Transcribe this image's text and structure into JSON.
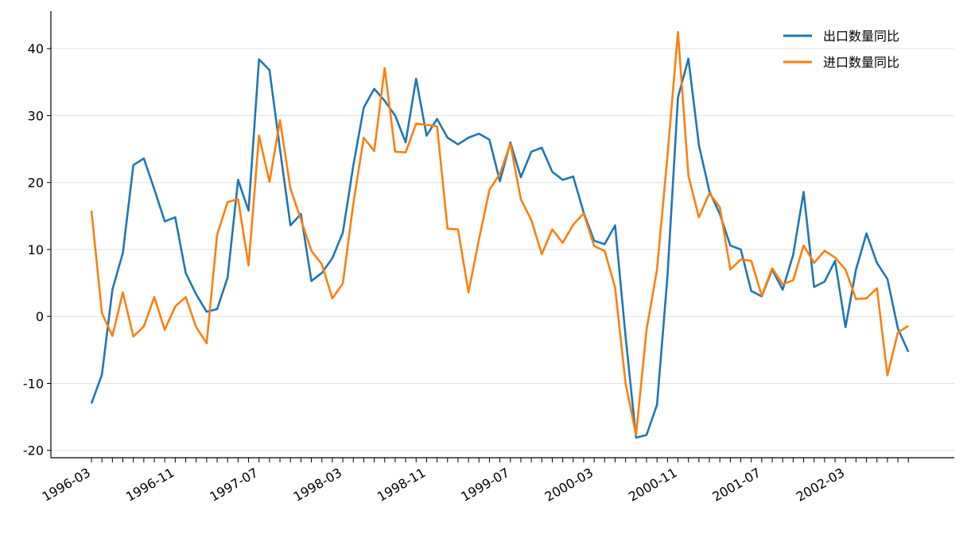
{
  "chart_data": {
    "type": "line",
    "categories": [
      "1996-03",
      null,
      null,
      null,
      null,
      null,
      null,
      null,
      "1996-11",
      null,
      null,
      null,
      null,
      null,
      null,
      null,
      "1997-07",
      null,
      null,
      null,
      null,
      null,
      null,
      null,
      "1998-03",
      null,
      null,
      null,
      null,
      null,
      null,
      null,
      "1998-11",
      null,
      null,
      null,
      null,
      null,
      null,
      null,
      "1999-07",
      null,
      null,
      null,
      null,
      null,
      null,
      null,
      "2000-03",
      null,
      null,
      null,
      null,
      null,
      null,
      null,
      "2000-11",
      null,
      null,
      null,
      null,
      null,
      null,
      null,
      "2001-07",
      null,
      null,
      null,
      null,
      null,
      null,
      null,
      "2002-03",
      null,
      null,
      null,
      null,
      null,
      null
    ],
    "series": [
      {
        "name": "出口数量同比",
        "color": "#1f77b4",
        "values": [
          -13,
          -8.7,
          4,
          9.5,
          22.6,
          23.6,
          19,
          14.2,
          14.8,
          6.5,
          3.3,
          0.7,
          1.1,
          5.8,
          20.4,
          15.8,
          38.4,
          36.8,
          25,
          13.6,
          15.3,
          5.3,
          6.5,
          8.7,
          12.5,
          22.5,
          31.2,
          34,
          32.2,
          30,
          26,
          35.5,
          27,
          29.5,
          26.7,
          25.7,
          26.7,
          27.3,
          26.4,
          20.2,
          26,
          20.8,
          24.6,
          25.2,
          21.6,
          20.4,
          20.9,
          15.5,
          11.3,
          10.8,
          13.6,
          -3,
          -18.1,
          -17.7,
          -13.2,
          6,
          32.7,
          38.5,
          25.6,
          18.7,
          15.3,
          10.6,
          10,
          3.8,
          3,
          7,
          4,
          9.2,
          18.6,
          4.4,
          5.2,
          8.3,
          -1.6,
          7,
          12.4,
          8,
          5.6,
          -1.8,
          -5.3
        ]
      },
      {
        "name": "进口数量同比",
        "color": "#ff7f0e",
        "values": [
          15.8,
          0.5,
          -2.9,
          3.6,
          -3,
          -1.5,
          2.9,
          -2,
          1.5,
          2.9,
          -1.6,
          -4,
          12.2,
          17.1,
          17.5,
          7.6,
          27,
          20.1,
          29.3,
          19.1,
          14.5,
          9.8,
          7.8,
          2.7,
          4.9,
          16.8,
          26.7,
          24.7,
          37.1,
          24.6,
          24.5,
          28.8,
          28.6,
          28.4,
          13.1,
          13,
          3.6,
          11.5,
          18.9,
          21.3,
          25.8,
          17.5,
          14.4,
          9.3,
          13,
          11,
          13.7,
          15.4,
          10.5,
          9.8,
          4.3,
          -10,
          -17.7,
          -2,
          7,
          24,
          42.5,
          21,
          14.8,
          18.4,
          16.3,
          7,
          8.5,
          8.3,
          3.1,
          7.2,
          4.8,
          5.4,
          10.6,
          8,
          9.8,
          8.8,
          7,
          2.6,
          2.7,
          4.2,
          -8.8,
          -2.4,
          -1.4
        ]
      }
    ],
    "ylim": [
      -21.1,
      45.6
    ],
    "yticks": [
      -20,
      -10,
      0,
      10,
      20,
      30,
      40
    ],
    "grid": true,
    "legend": "upper right"
  }
}
